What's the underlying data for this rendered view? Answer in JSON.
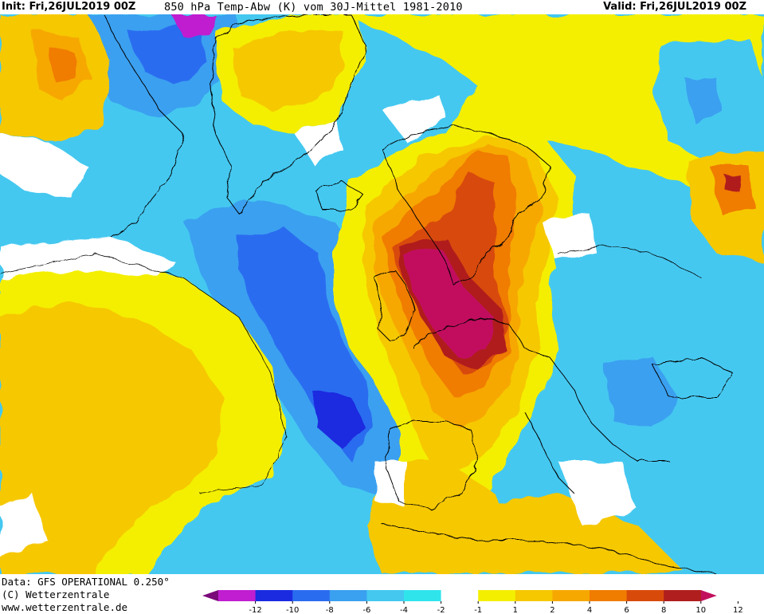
{
  "header": {
    "init_text": "Init: Fri,26JUL2019 00Z",
    "title_text": "850 hPa Temp-Abw (K) vom 30J-Mittel 1981-2010",
    "valid_text": "Valid: Fri,26JUL2019 00Z"
  },
  "footer": {
    "data_text": "Data: GFS OPERATIONAL 0.250°",
    "copyright_text": "(C) Wetterzentrale",
    "url_text": "www.wetterzentrale.de"
  },
  "legend": {
    "ticks": [
      "-12",
      "-10",
      "-8",
      "-6",
      "-4",
      "-2",
      "-1",
      "1",
      "2",
      "4",
      "6",
      "8",
      "10",
      "12"
    ],
    "colors": [
      "#7a0a7a",
      "#c01ed0",
      "#1a2be0",
      "#2a6cf0",
      "#3aa0f0",
      "#44c8f0",
      "#30e4ec",
      "#ffffff",
      "#f4ef00",
      "#f6c800",
      "#f6a800",
      "#f07c00",
      "#d84a0a",
      "#b01e1e",
      "#c2105e"
    ]
  },
  "map": {
    "colors": {
      "neutral": "#ffffff",
      "warm_1": "#f4ef00",
      "warm_2": "#f6c800",
      "warm_4": "#f6a800",
      "warm_6": "#f07c00",
      "warm_8": "#d84a0a",
      "warm_10": "#b01e1e",
      "warm_12": "#c2105e",
      "cold_1": "#30e4ec",
      "cold_2": "#44c8f0",
      "cold_4": "#3aa0f0",
      "cold_6": "#2a6cf0",
      "cold_8": "#1a2be0",
      "cold_10": "#c01ed0"
    }
  }
}
